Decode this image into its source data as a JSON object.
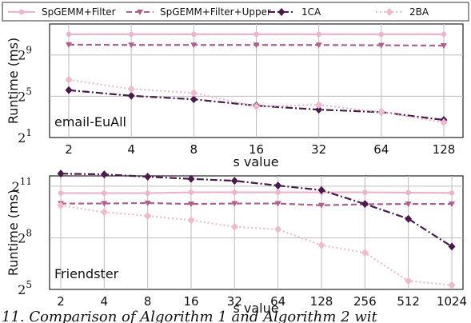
{
  "legend": {
    "items": [
      {
        "label": "SpGEMM+Filter",
        "color": "#f0b2c8",
        "dash": "solid",
        "marker": "circle"
      },
      {
        "label": "SpGEMM+Filter+Upper",
        "color": "#b85c8a",
        "dash": "dashed",
        "marker": "triangle"
      },
      {
        "label": "1CA",
        "color": "#4a1a4e",
        "dash": "dashdot",
        "marker": "diamond"
      },
      {
        "label": "2BA",
        "color": "#f4b8cc",
        "dash": "dotted",
        "marker": "diamond"
      }
    ]
  },
  "caption_text": "11.  Comparison of Algorithm 1 and Algorithm 2 wit",
  "chart_data": [
    {
      "type": "line",
      "dataset": "email-EuAll",
      "xlabel": "s value",
      "ylabel": "Runtime (ms)",
      "yscale": "log2",
      "ylim_exp": [
        1,
        12
      ],
      "yticks": [
        {
          "exp": 1,
          "label": "1"
        },
        {
          "exp": 5,
          "label": "5"
        },
        {
          "exp": 9,
          "label": "9"
        }
      ],
      "categories": [
        "2",
        "4",
        "8",
        "16",
        "32",
        "64",
        "128"
      ],
      "grid": true,
      "series": [
        {
          "name": "SpGEMM+Filter",
          "values": [
            2048,
            2048,
            2048,
            2048,
            2048,
            2048,
            2048
          ]
        },
        {
          "name": "SpGEMM+Filter+Upper",
          "values": [
            1024,
            1000,
            1000,
            1000,
            1000,
            980,
            960
          ]
        },
        {
          "name": "1CA",
          "values": [
            48,
            33,
            26,
            17,
            13,
            11,
            6.5
          ]
        },
        {
          "name": "2BA",
          "values": [
            96,
            52,
            40,
            16,
            18,
            11,
            5.5
          ]
        }
      ]
    },
    {
      "type": "line",
      "dataset": "Friendster",
      "xlabel": "s value",
      "ylabel": "Runtime (ms)",
      "yscale": "log2",
      "ylim_exp": [
        5,
        11.6
      ],
      "yticks": [
        {
          "exp": 5,
          "label": "5"
        },
        {
          "exp": 8,
          "label": "8"
        },
        {
          "exp": 11,
          "label": "11"
        }
      ],
      "categories": [
        "2",
        "4",
        "8",
        "16",
        "32",
        "64",
        "128",
        "256",
        "512",
        "1024"
      ],
      "grid": true,
      "series": [
        {
          "name": "SpGEMM+Filter",
          "values": [
            1550,
            1550,
            1550,
            1600,
            1600,
            1600,
            1600,
            1600,
            1580,
            1560
          ]
        },
        {
          "name": "SpGEMM+Filter+Upper",
          "values": [
            1020,
            1020,
            1040,
            1000,
            1020,
            1020,
            950,
            990,
            1000,
            1000
          ]
        },
        {
          "name": "1CA",
          "values": [
            3400,
            3300,
            3000,
            2750,
            2550,
            2100,
            1750,
            1000,
            550,
            180
          ]
        },
        {
          "name": "2BA",
          "values": [
            940,
            720,
            620,
            520,
            400,
            360,
            190,
            140,
            45,
            38
          ]
        }
      ]
    }
  ]
}
